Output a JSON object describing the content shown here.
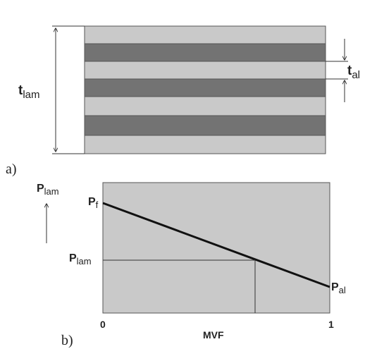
{
  "panel_a": {
    "label": "a)",
    "thickness_label": {
      "main": "t",
      "sub": "lam"
    },
    "layer_label": {
      "main": "t",
      "sub": "al"
    },
    "layers": [
      "light",
      "dark",
      "light",
      "dark",
      "light",
      "dark",
      "light"
    ],
    "colors": {
      "light": "#c9c9c9",
      "dark": "#737373",
      "outline": "#555555"
    }
  },
  "panel_b": {
    "label": "b)",
    "y_axis_label": {
      "main": "P",
      "sub": "lam"
    },
    "x_axis_label": "MVF",
    "x_ticks": [
      "0",
      "1"
    ],
    "line_start_label": {
      "main": "P",
      "sub": "f"
    },
    "line_end_label": {
      "main": "P",
      "sub": "al"
    },
    "intersection_label": {
      "main": "P",
      "sub": "lam"
    },
    "colors": {
      "plot_bg": "#c9c9c9",
      "line": "#111111"
    }
  }
}
